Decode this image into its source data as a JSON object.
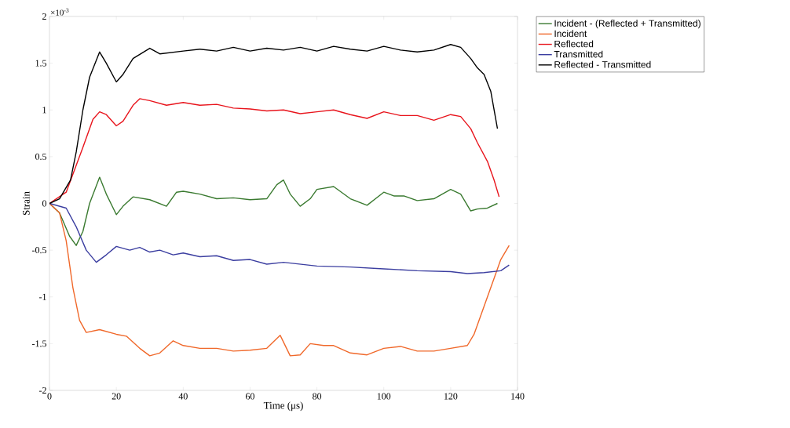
{
  "chart_data": {
    "type": "line",
    "xlabel": "Time (μs)",
    "ylabel": "Strain",
    "annotations": [
      "×10$^{-3}$"
    ],
    "xlim": [
      0,
      140
    ],
    "xticks": [
      0,
      20,
      40,
      60,
      80,
      100,
      120,
      140
    ],
    "ylim": [
      -2,
      2
    ],
    "yticks": [
      -2,
      -1.5,
      -1,
      -0.5,
      0,
      0.5,
      1,
      1.5,
      2
    ],
    "grid": false,
    "legend": "top right",
    "marker": "none",
    "line_style": "solid",
    "series": [
      {
        "name": "Incident - (Reflected + Transmitted)",
        "color": "#3a7a30",
        "x": [
          0,
          3,
          6,
          8,
          10,
          12,
          15,
          17,
          20,
          22,
          25,
          30,
          35,
          38,
          40,
          45,
          50,
          55,
          60,
          65,
          68,
          70,
          72,
          75,
          78,
          80,
          85,
          90,
          95,
          100,
          103,
          106,
          110,
          115,
          120,
          123,
          126,
          128,
          131,
          134
        ],
        "values": [
          0,
          -0.1,
          -0.35,
          -0.45,
          -0.3,
          0,
          0.28,
          0.1,
          -0.12,
          -0.03,
          0.07,
          0.04,
          -0.03,
          0.12,
          0.13,
          0.1,
          0.05,
          0.06,
          0.04,
          0.05,
          0.2,
          0.25,
          0.1,
          -0.03,
          0.05,
          0.15,
          0.18,
          0.05,
          -0.02,
          0.12,
          0.08,
          0.08,
          0.03,
          0.05,
          0.15,
          0.1,
          -0.08,
          -0.06,
          -0.05,
          0.0
        ]
      },
      {
        "name": "Incident",
        "color": "#f0682a",
        "x": [
          0,
          3,
          5,
          7,
          9,
          11,
          15,
          20,
          23,
          27,
          30,
          33,
          37,
          40,
          45,
          50,
          55,
          60,
          65,
          69,
          72,
          75,
          78,
          82,
          85,
          90,
          95,
          100,
          105,
          110,
          115,
          120,
          125,
          127,
          130,
          133,
          135,
          137.5
        ],
        "values": [
          0,
          -0.1,
          -0.4,
          -0.9,
          -1.25,
          -1.38,
          -1.35,
          -1.4,
          -1.42,
          -1.55,
          -1.63,
          -1.6,
          -1.47,
          -1.52,
          -1.55,
          -1.55,
          -1.58,
          -1.57,
          -1.55,
          -1.41,
          -1.63,
          -1.62,
          -1.5,
          -1.52,
          -1.52,
          -1.6,
          -1.62,
          -1.55,
          -1.53,
          -1.58,
          -1.58,
          -1.55,
          -1.52,
          -1.4,
          -1.1,
          -0.8,
          -0.6,
          -0.45
        ]
      },
      {
        "name": "Reflected",
        "color": "#e8141c",
        "x": [
          0,
          5,
          10,
          13,
          15,
          17,
          20,
          22,
          25,
          27,
          30,
          35,
          40,
          45,
          50,
          55,
          60,
          65,
          70,
          75,
          80,
          85,
          90,
          95,
          100,
          105,
          110,
          115,
          120,
          123,
          126,
          128,
          131,
          133,
          134.5
        ],
        "values": [
          0,
          0.12,
          0.6,
          0.9,
          0.98,
          0.95,
          0.83,
          0.88,
          1.05,
          1.12,
          1.1,
          1.05,
          1.08,
          1.05,
          1.06,
          1.02,
          1.01,
          0.99,
          1.0,
          0.96,
          0.98,
          1.0,
          0.95,
          0.91,
          0.98,
          0.94,
          0.94,
          0.89,
          0.95,
          0.93,
          0.8,
          0.65,
          0.45,
          0.25,
          0.07
        ]
      },
      {
        "name": "Transmitted",
        "color": "#3b3ea0",
        "x": [
          0,
          5,
          8,
          11,
          14,
          17,
          20,
          24,
          27,
          30,
          33,
          37,
          40,
          45,
          50,
          55,
          60,
          65,
          70,
          75,
          80,
          90,
          100,
          110,
          120,
          125,
          130,
          135,
          137.5
        ],
        "values": [
          0,
          -0.05,
          -0.25,
          -0.5,
          -0.63,
          -0.55,
          -0.46,
          -0.5,
          -0.47,
          -0.52,
          -0.5,
          -0.55,
          -0.53,
          -0.57,
          -0.56,
          -0.61,
          -0.6,
          -0.65,
          -0.63,
          -0.65,
          -0.67,
          -0.68,
          -0.7,
          -0.72,
          -0.73,
          -0.75,
          -0.74,
          -0.72,
          -0.66
        ]
      },
      {
        "name": "Reflected - Transmitted",
        "color": "#000000",
        "x": [
          0,
          3,
          6.3,
          8,
          10,
          12,
          15,
          17,
          20,
          22,
          25,
          30,
          33,
          40,
          45,
          50,
          55,
          60,
          65,
          70,
          75,
          80,
          85,
          90,
          95,
          100,
          105,
          110,
          115,
          120,
          123,
          126,
          128,
          130,
          132,
          134
        ],
        "values": [
          0,
          0.05,
          0.25,
          0.55,
          1.0,
          1.35,
          1.62,
          1.5,
          1.3,
          1.38,
          1.55,
          1.66,
          1.6,
          1.63,
          1.65,
          1.63,
          1.67,
          1.63,
          1.66,
          1.64,
          1.67,
          1.63,
          1.68,
          1.65,
          1.63,
          1.68,
          1.64,
          1.62,
          1.64,
          1.7,
          1.67,
          1.55,
          1.45,
          1.38,
          1.2,
          0.8
        ]
      }
    ]
  }
}
